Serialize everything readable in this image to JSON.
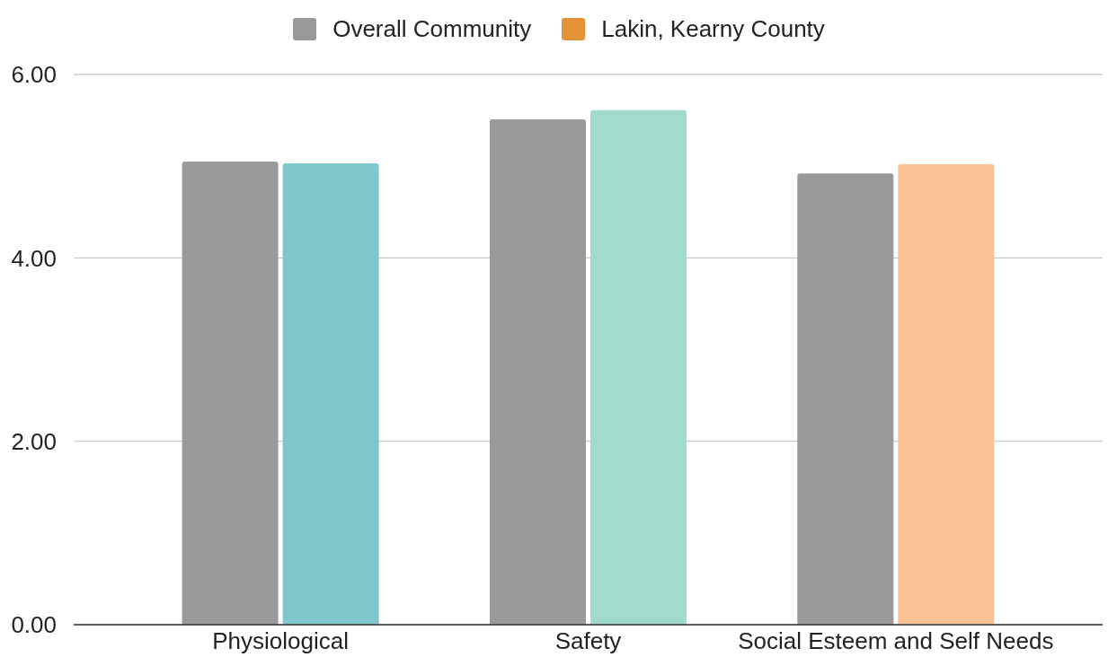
{
  "chart_data": {
    "type": "bar",
    "categories": [
      "Physiological",
      "Safety",
      "Social Esteem and Self Needs"
    ],
    "series": [
      {
        "name": "Overall Community",
        "color": "#999999",
        "values": [
          5.05,
          5.51,
          4.92
        ]
      },
      {
        "name": "Lakin, Kearny County",
        "color": "#e69138",
        "colors": [
          "#7fc7cc",
          "#9fdacd",
          "#f8c296"
        ],
        "values": [
          5.03,
          5.61,
          5.02
        ]
      }
    ],
    "ylim": [
      0,
      6
    ],
    "yticks": [
      {
        "value": 0,
        "label": "0.00"
      },
      {
        "value": 2,
        "label": "2.00"
      },
      {
        "value": 4,
        "label": "4.00"
      },
      {
        "value": 6,
        "label": "6.00"
      }
    ],
    "grid": "y",
    "legend": "top"
  }
}
